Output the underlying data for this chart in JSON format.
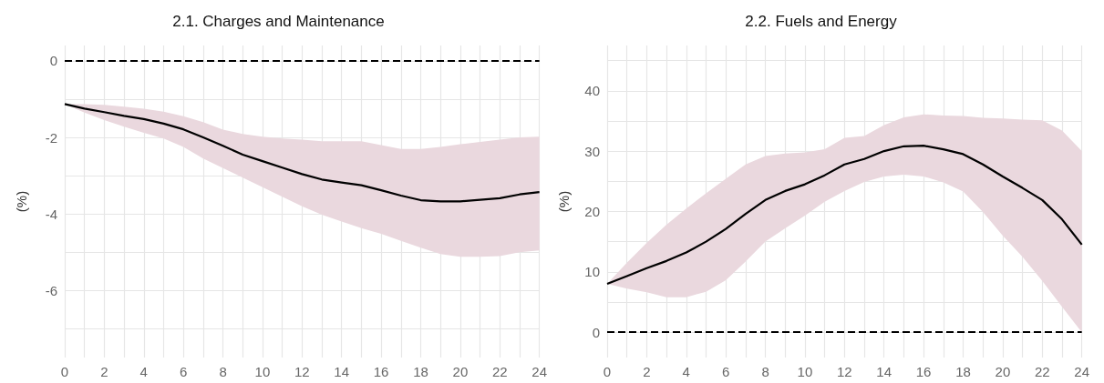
{
  "chart_data": [
    {
      "type": "line",
      "title": "2.1. Charges and Maintenance",
      "ylabel": "(%)",
      "x": [
        0,
        1,
        2,
        3,
        4,
        5,
        6,
        7,
        8,
        9,
        10,
        11,
        12,
        13,
        14,
        15,
        16,
        17,
        18,
        19,
        20,
        21,
        22,
        23,
        24
      ],
      "series": [
        {
          "color": "#000000",
          "values": [
            -1.13,
            -1.25,
            -1.34,
            -1.44,
            -1.52,
            -1.64,
            -1.79,
            -2.0,
            -2.22,
            -2.45,
            -2.62,
            -2.79,
            -2.96,
            -3.1,
            -3.18,
            -3.25,
            -3.38,
            -3.52,
            -3.64,
            -3.67,
            -3.67,
            -3.63,
            -3.59,
            -3.49,
            -3.43
          ],
          "lower": [
            -1.13,
            -1.35,
            -1.55,
            -1.72,
            -1.88,
            -2.03,
            -2.25,
            -2.55,
            -2.8,
            -3.05,
            -3.3,
            -3.55,
            -3.8,
            -4.02,
            -4.2,
            -4.37,
            -4.52,
            -4.7,
            -4.88,
            -5.05,
            -5.12,
            -5.12,
            -5.1,
            -5.0,
            -4.95
          ],
          "upper": [
            -1.13,
            -1.13,
            -1.15,
            -1.2,
            -1.25,
            -1.33,
            -1.45,
            -1.6,
            -1.8,
            -1.91,
            -1.98,
            -2.03,
            -2.06,
            -2.1,
            -2.1,
            -2.1,
            -2.2,
            -2.3,
            -2.3,
            -2.25,
            -2.18,
            -2.12,
            -2.06,
            -2.0,
            -1.98
          ]
        }
      ],
      "xlim": [
        0,
        24
      ],
      "xticks": [
        0,
        {
          "value": 1,
          "label": null
        },
        2,
        {
          "value": 3,
          "label": null
        },
        4,
        {
          "value": 5,
          "label": null
        },
        6,
        {
          "value": 7,
          "label": null
        },
        8,
        {
          "value": 9,
          "label": null
        },
        10,
        {
          "value": 11,
          "label": null
        },
        12,
        {
          "value": 13,
          "label": null
        },
        14,
        {
          "value": 15,
          "label": null
        },
        16,
        {
          "value": 17,
          "label": null
        },
        18,
        {
          "value": 19,
          "label": null
        },
        20,
        {
          "value": 21,
          "label": null
        },
        22,
        {
          "value": 23,
          "label": null
        },
        24
      ],
      "ylim": [
        -7.75,
        0.4
      ],
      "yticks": [
        {
          "value": -7,
          "label": null
        },
        -6,
        {
          "value": -5,
          "label": null
        },
        -4,
        {
          "value": -3,
          "label": null
        },
        -2,
        {
          "value": -1,
          "label": null
        },
        0
      ],
      "ref_lines": [
        {
          "axis": "y",
          "value": 0,
          "color": "#000000",
          "line_style": "dashed"
        }
      ],
      "grid": true
    },
    {
      "type": "line",
      "title": "2.2. Fuels and Energy",
      "ylabel": "(%)",
      "x": [
        0,
        1,
        2,
        3,
        4,
        5,
        6,
        7,
        8,
        9,
        10,
        11,
        12,
        13,
        14,
        15,
        16,
        17,
        18,
        19,
        20,
        21,
        22,
        23,
        24
      ],
      "series": [
        {
          "color": "#000000",
          "values": [
            8.0,
            9.3,
            10.6,
            11.8,
            13.2,
            15.0,
            17.1,
            19.6,
            21.9,
            23.4,
            24.5,
            26.0,
            27.8,
            28.7,
            30.0,
            30.8,
            30.9,
            30.3,
            29.5,
            27.8,
            25.8,
            23.9,
            21.9,
            18.7,
            14.5
          ],
          "lower": [
            8.0,
            7.2,
            6.6,
            5.8,
            5.8,
            6.7,
            8.6,
            11.7,
            15.0,
            17.2,
            19.3,
            21.6,
            23.4,
            24.9,
            25.8,
            26.1,
            25.8,
            24.8,
            23.3,
            19.9,
            16.0,
            12.5,
            8.5,
            4.2,
            0.0
          ],
          "upper": [
            8.0,
            11.5,
            14.8,
            17.8,
            20.5,
            23.0,
            25.4,
            27.8,
            29.2,
            29.6,
            29.8,
            30.3,
            32.2,
            32.5,
            34.3,
            35.6,
            36.1,
            35.9,
            35.8,
            35.5,
            35.4,
            35.2,
            35.1,
            33.4,
            30.0
          ]
        }
      ],
      "xlim": [
        0,
        24
      ],
      "xticks": [
        0,
        {
          "value": 1,
          "label": null
        },
        2,
        {
          "value": 3,
          "label": null
        },
        4,
        {
          "value": 5,
          "label": null
        },
        6,
        {
          "value": 7,
          "label": null
        },
        8,
        {
          "value": 9,
          "label": null
        },
        10,
        {
          "value": 11,
          "label": null
        },
        12,
        {
          "value": 13,
          "label": null
        },
        14,
        {
          "value": 15,
          "label": null
        },
        16,
        {
          "value": 17,
          "label": null
        },
        18,
        {
          "value": 19,
          "label": null
        },
        20,
        {
          "value": 21,
          "label": null
        },
        22,
        {
          "value": 23,
          "label": null
        },
        24
      ],
      "ylim": [
        -4.2,
        47.5
      ],
      "yticks": [
        0,
        {
          "value": 5,
          "label": null
        },
        10,
        {
          "value": 15,
          "label": null
        },
        20,
        {
          "value": 25,
          "label": null
        },
        30,
        {
          "value": 35,
          "label": null
        },
        40,
        {
          "value": 45,
          "label": null
        }
      ],
      "ref_lines": [
        {
          "axis": "y",
          "value": 0,
          "color": "#000000",
          "line_style": "dashed"
        }
      ],
      "grid": true
    }
  ]
}
